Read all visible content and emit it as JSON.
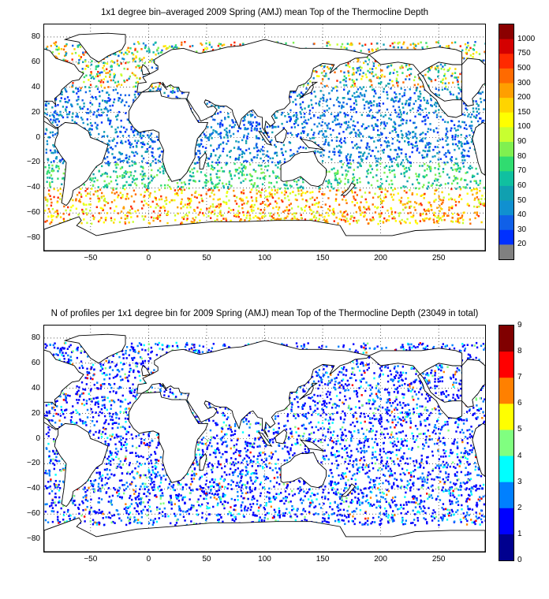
{
  "top": {
    "title": "1x1 degree bin–averaged 2009 Spring (AMJ) mean Top of the Thermocline Depth",
    "y_ticks": [
      "80",
      "60",
      "40",
      "20",
      "0",
      "−20",
      "−40",
      "−60",
      "−80"
    ],
    "x_ticks": [
      "−50",
      "0",
      "50",
      "100",
      "150",
      "200",
      "250"
    ],
    "colorbar": {
      "labels": [
        "1000",
        "750",
        "500",
        "300",
        "200",
        "150",
        "100",
        "90",
        "80",
        "70",
        "60",
        "50",
        "40",
        "30",
        "20"
      ],
      "colors": [
        "#8b0000",
        "#d40000",
        "#ff2a00",
        "#ff6a00",
        "#ff9f00",
        "#ffd400",
        "#ffff00",
        "#c8ff30",
        "#80f050",
        "#30dc70",
        "#10c0a0",
        "#10a0b0",
        "#1090d0",
        "#1060e8",
        "#0030ff",
        "#808080"
      ]
    }
  },
  "bottom": {
    "title": "N of profiles per 1x1 degree bin for 2009 Spring (AMJ) mean Top of the Thermocline Depth  (23049 in total)",
    "y_ticks": [
      "80",
      "60",
      "40",
      "20",
      "0",
      "−20",
      "−40",
      "−60",
      "−80"
    ],
    "x_ticks": [
      "−50",
      "0",
      "50",
      "100",
      "150",
      "200",
      "250"
    ],
    "colorbar": {
      "labels": [
        "9",
        "8",
        "7",
        "6",
        "5",
        "4",
        "3",
        "2",
        "1",
        "0"
      ],
      "colors": [
        "#800000",
        "#ff0000",
        "#ff8000",
        "#ffff00",
        "#80ff80",
        "#00ffff",
        "#0080ff",
        "#0000ff",
        "#00008f"
      ]
    }
  },
  "map_extent": {
    "lon": [
      -90,
      290
    ],
    "lat": [
      -90,
      90
    ]
  }
}
